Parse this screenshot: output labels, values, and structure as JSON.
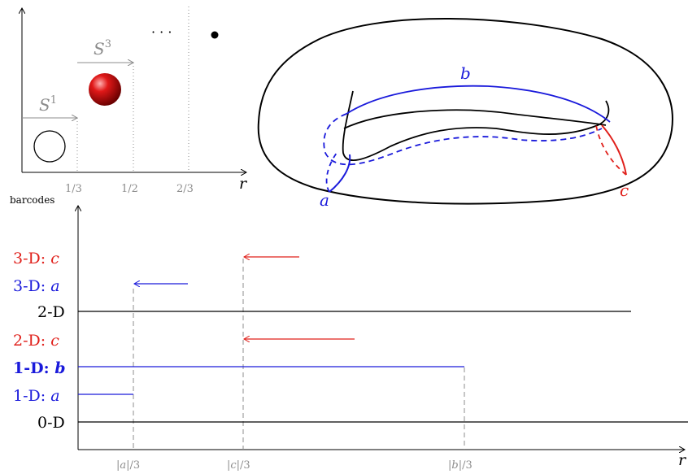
{
  "top_left_plot": {
    "axis_label_r": "r",
    "sphere_labels": {
      "s1": "S",
      "s1_sup": "1",
      "s3": "S",
      "s3_sup": "3"
    },
    "dots": "· · ·",
    "ticks": [
      "1/3",
      "1/2",
      "2/3"
    ]
  },
  "torus": {
    "label_a": "a",
    "label_b": "b",
    "label_c": "c"
  },
  "barcode_plot": {
    "y_axis_label": "barcodes",
    "x_axis_label": "r",
    "rows": [
      {
        "dim": "3-D: ",
        "cycle": "c",
        "color": "#e0201b"
      },
      {
        "dim": "3-D: ",
        "cycle": "a",
        "color": "#1a1adb"
      },
      {
        "dim": "2-D",
        "cycle": "",
        "color": "#000000"
      },
      {
        "dim": "2-D: ",
        "cycle": "c",
        "color": "#e0201b"
      },
      {
        "dim": "1-D: ",
        "cycle": "b",
        "color": "#1a1adb"
      },
      {
        "dim": "1-D: ",
        "cycle": "a",
        "color": "#1a1adb"
      },
      {
        "dim": "0-D",
        "cycle": "",
        "color": "#000000"
      }
    ],
    "x_ticks": [
      "|a|/3",
      "|c|/3",
      "|b|/3"
    ]
  },
  "colors": {
    "blue": "#1a1adb",
    "red": "#e0201b",
    "gray": "#8c8c8c"
  }
}
